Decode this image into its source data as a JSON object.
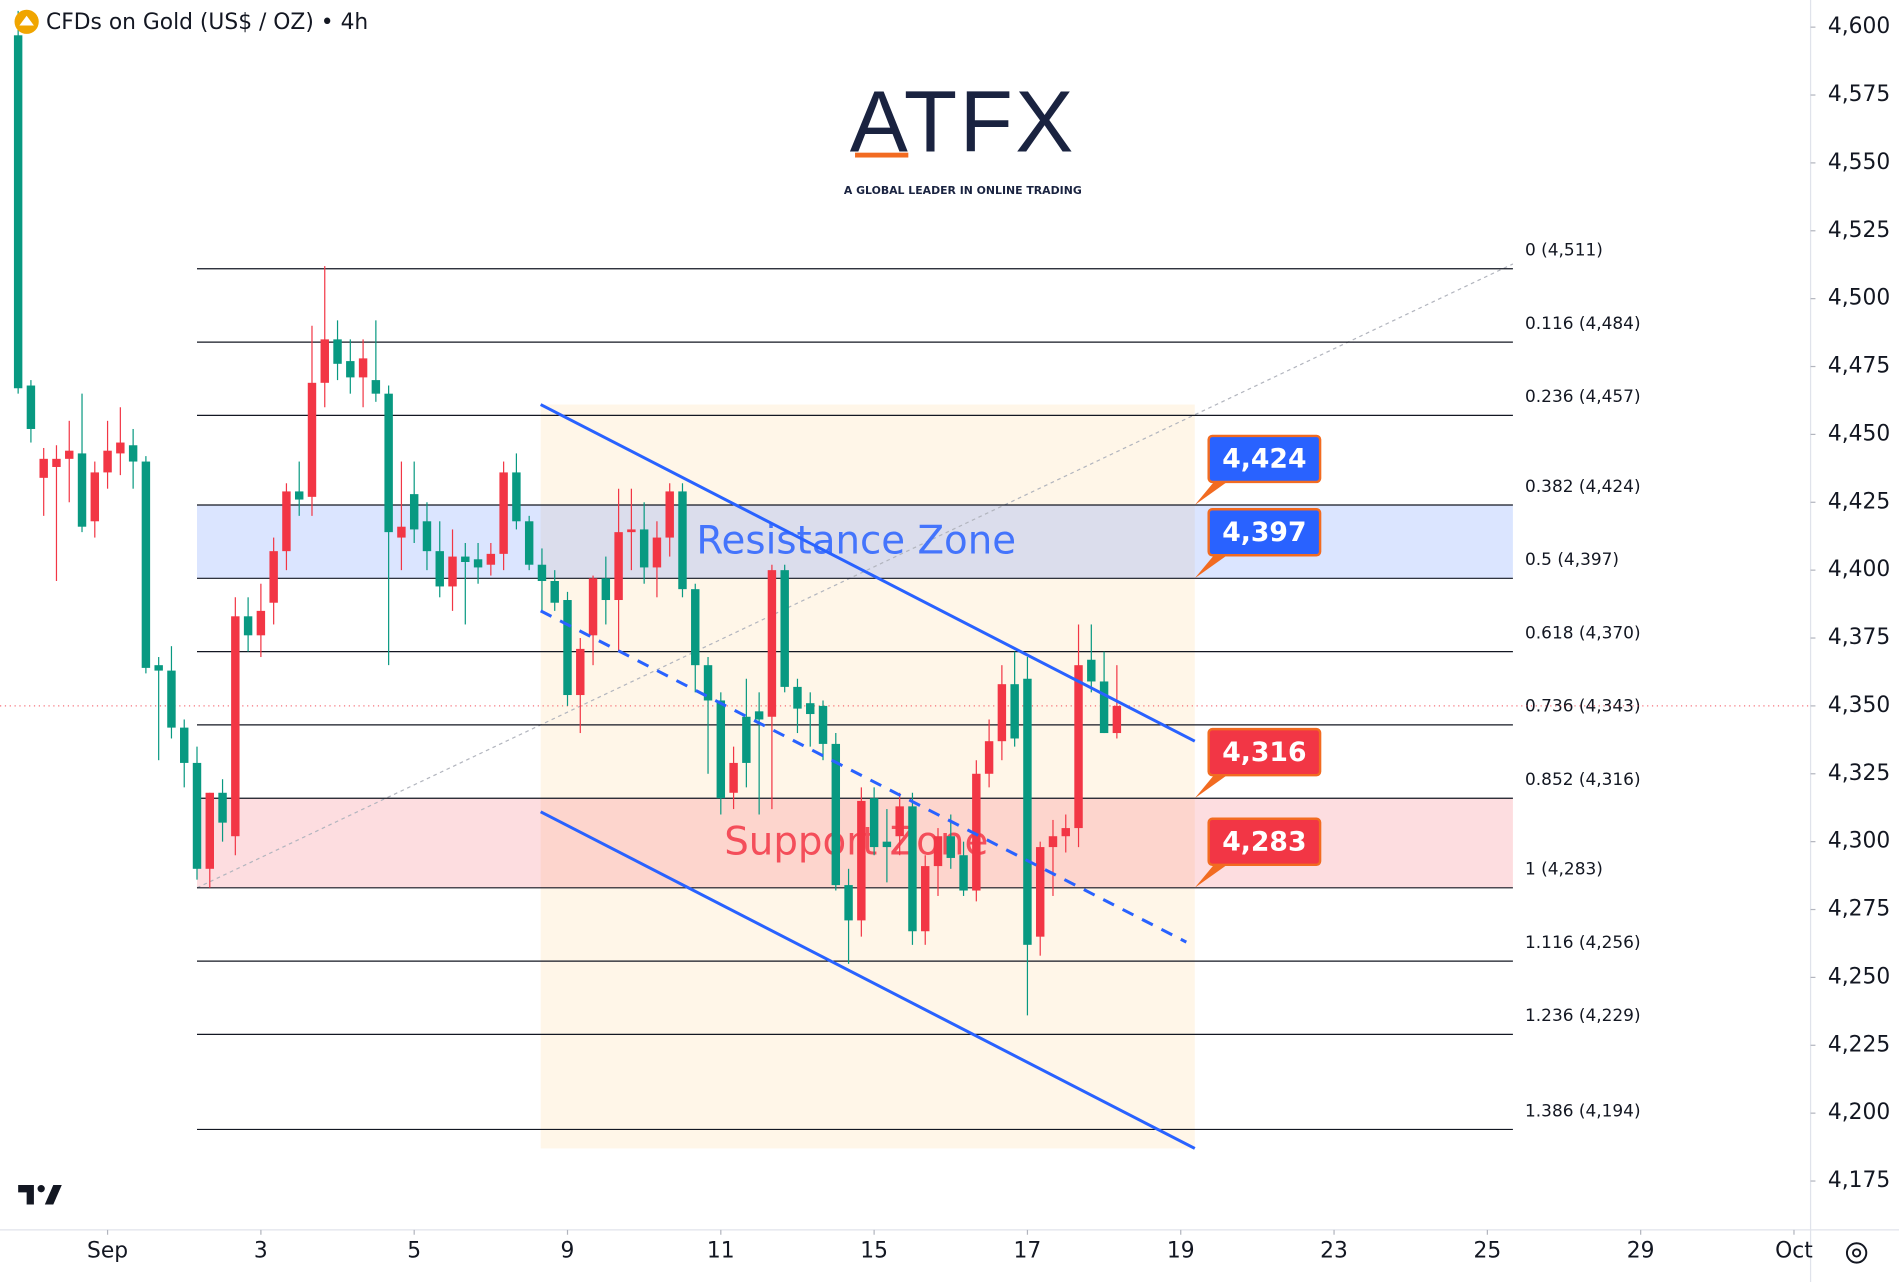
{
  "logo": {
    "name": "ATFX",
    "tagline": "A GLOBAL LEADER IN ONLINE TRADING"
  },
  "chart_data": {
    "type": "candlestick",
    "title": "CFDs on Gold (US$ / OZ) • 4h",
    "up_color": "#f23645",
    "down_color": "#089981",
    "open": [
      4597,
      4468,
      4434,
      4438,
      4441,
      4443,
      4418,
      4436,
      4443,
      4446,
      4440,
      4365,
      4363,
      4342,
      4329,
      4290,
      4318,
      4302,
      4383,
      4376,
      4388,
      4407,
      4429,
      4427,
      4469,
      4485,
      4477,
      4471,
      4470,
      4465,
      4412,
      4428,
      4418,
      4407,
      4394,
      4405,
      4404,
      4402,
      4406,
      4436,
      4418,
      4402,
      4396,
      4389,
      4354,
      4376,
      4397,
      4389,
      4414,
      4415,
      4401,
      4412,
      4429,
      4393,
      4365,
      4352,
      4318,
      4346,
      4348,
      4346,
      4400,
      4357,
      4351,
      4350,
      4336,
      4284,
      4271,
      4316,
      4300,
      4302,
      4313,
      4267,
      4291,
      4302,
      4295,
      4282,
      4325,
      4337,
      4358,
      4360,
      4265,
      4298,
      4302,
      4305,
      4367,
      4359,
      4340
    ],
    "high": [
      4606,
      4470,
      4445,
      4446,
      4455,
      4465,
      4440,
      4455,
      4460,
      4452,
      4442,
      4368,
      4372,
      4345,
      4335,
      4318,
      4323,
      4390,
      4390,
      4395,
      4412,
      4432,
      4440,
      4490,
      4512,
      4492,
      4485,
      4485,
      4492,
      4468,
      4440,
      4440,
      4425,
      4418,
      4415,
      4410,
      4410,
      4410,
      4440,
      4443,
      4420,
      4408,
      4400,
      4392,
      4375,
      4398,
      4405,
      4430,
      4430,
      4425,
      4418,
      4432,
      4432,
      4395,
      4368,
      4355,
      4335,
      4360,
      4355,
      4402,
      4402,
      4360,
      4355,
      4352,
      4340,
      4290,
      4320,
      4320,
      4312,
      4318,
      4318,
      4295,
      4305,
      4310,
      4300,
      4330,
      4345,
      4365,
      4370,
      4368,
      4300,
      4308,
      4310,
      4380,
      4380,
      4370,
      4365
    ],
    "low": [
      4465,
      4447,
      4420,
      4396,
      4425,
      4414,
      4412,
      4430,
      4435,
      4430,
      4362,
      4330,
      4338,
      4320,
      4286,
      4283,
      4300,
      4295,
      4370,
      4368,
      4380,
      4400,
      4420,
      4420,
      4460,
      4470,
      4465,
      4460,
      4462,
      4365,
      4400,
      4410,
      4400,
      4390,
      4385,
      4380,
      4395,
      4398,
      4400,
      4415,
      4400,
      4385,
      4385,
      4350,
      4340,
      4365,
      4380,
      4370,
      4400,
      4395,
      4390,
      4405,
      4390,
      4355,
      4325,
      4310,
      4312,
      4320,
      4310,
      4312,
      4355,
      4340,
      4335,
      4330,
      4282,
      4255,
      4265,
      4295,
      4285,
      4295,
      4262,
      4262,
      4280,
      4290,
      4280,
      4278,
      4320,
      4330,
      4335,
      4236,
      4258,
      4280,
      4296,
      4298,
      4355,
      4340,
      4338
    ],
    "close": [
      4467,
      4452,
      4441,
      4441,
      4444,
      4416,
      4436,
      4444,
      4447,
      4440,
      4364,
      4363,
      4342,
      4329,
      4290,
      4318,
      4307,
      4383,
      4376,
      4385,
      4407,
      4429,
      4426,
      4469,
      4485,
      4476,
      4471,
      4478,
      4465,
      4414,
      4416,
      4415,
      4407,
      4394,
      4405,
      4403,
      4401,
      4406,
      4436,
      4418,
      4402,
      4396,
      4388,
      4354,
      4371,
      4397,
      4389,
      4414,
      4415,
      4401,
      4412,
      4429,
      4393,
      4365,
      4352,
      4316,
      4329,
      4329,
      4345,
      4400,
      4357,
      4349,
      4347,
      4336,
      4284,
      4271,
      4315,
      4298,
      4298,
      4313,
      4267,
      4291,
      4302,
      4294,
      4282,
      4325,
      4337,
      4358,
      4338,
      4262,
      4298,
      4302,
      4305,
      4365,
      4359,
      4340,
      4350
    ],
    "xlim": [
      -1.42,
      140.3
    ],
    "xticks": [
      {
        "value": 7,
        "label": "Sep"
      },
      {
        "value": 19,
        "label": "3"
      },
      {
        "value": 31,
        "label": "5"
      },
      {
        "value": 43,
        "label": "9"
      },
      {
        "value": 55,
        "label": "11"
      },
      {
        "value": 67,
        "label": "15"
      },
      {
        "value": 79,
        "label": "17"
      },
      {
        "value": 91,
        "label": "19"
      },
      {
        "value": 103,
        "label": "23"
      },
      {
        "value": 115,
        "label": "25"
      },
      {
        "value": 127,
        "label": "29"
      },
      {
        "value": 139,
        "label": "Oct"
      }
    ],
    "ylim": [
      4157,
      4610
    ],
    "yticks": [
      {
        "value": 4175,
        "label": "4,175"
      },
      {
        "value": 4200,
        "label": "4,200"
      },
      {
        "value": 4225,
        "label": "4,225"
      },
      {
        "value": 4250,
        "label": "4,250"
      },
      {
        "value": 4275,
        "label": "4,275"
      },
      {
        "value": 4300,
        "label": "4,300"
      },
      {
        "value": 4325,
        "label": "4,325"
      },
      {
        "value": 4350,
        "label": "4,350"
      },
      {
        "value": 4375,
        "label": "4,375"
      },
      {
        "value": 4400,
        "label": "4,400"
      },
      {
        "value": 4425,
        "label": "4,425"
      },
      {
        "value": 4450,
        "label": "4,450"
      },
      {
        "value": 4475,
        "label": "4,475"
      },
      {
        "value": 4500,
        "label": "4,500"
      },
      {
        "value": 4525,
        "label": "4,525"
      },
      {
        "value": 4550,
        "label": "4,550"
      },
      {
        "value": 4575,
        "label": "4,575"
      },
      {
        "value": 4600,
        "label": "4,600"
      }
    ],
    "fib_levels": [
      {
        "value": 4511,
        "label": "0 (4,511)"
      },
      {
        "value": 4484,
        "label": "0.116 (4,484)"
      },
      {
        "value": 4457,
        "label": "0.236 (4,457)"
      },
      {
        "value": 4424,
        "label": "0.382 (4,424)"
      },
      {
        "value": 4397,
        "label": "0.5 (4,397)"
      },
      {
        "value": 4370,
        "label": "0.618 (4,370)"
      },
      {
        "value": 4343,
        "label": "0.736 (4,343)"
      },
      {
        "value": 4316,
        "label": "0.852 (4,316)"
      },
      {
        "value": 4283,
        "label": "1 (4,283)"
      },
      {
        "value": 4256,
        "label": "1.116 (4,256)"
      },
      {
        "value": 4229,
        "label": "1.236 (4,229)"
      },
      {
        "value": 4194,
        "label": "1.386 (4,194)"
      }
    ],
    "zones": [
      {
        "label": "Resistance Zone",
        "range": [
          4397,
          4424
        ],
        "color": "#2962ff"
      },
      {
        "label": "Support Zone",
        "range": [
          4283,
          4316
        ],
        "color": "#f23645"
      }
    ],
    "price_labels": [
      {
        "value": 4424,
        "label": "4,424",
        "color": "#2962ff"
      },
      {
        "value": 4397,
        "label": "4,397",
        "color": "#2962ff"
      },
      {
        "value": 4316,
        "label": "4,316",
        "color": "#f23645"
      },
      {
        "value": 4283,
        "label": "4,283",
        "color": "#f23645"
      }
    ],
    "trend_lines": [
      {
        "values": [
          4461,
          4337
        ],
        "dash": false
      },
      {
        "values": [
          4385,
          4263
        ],
        "dash": true
      },
      {
        "values": [
          4311,
          4187
        ],
        "dash": false
      }
    ],
    "trend_color": "#2962ff"
  }
}
